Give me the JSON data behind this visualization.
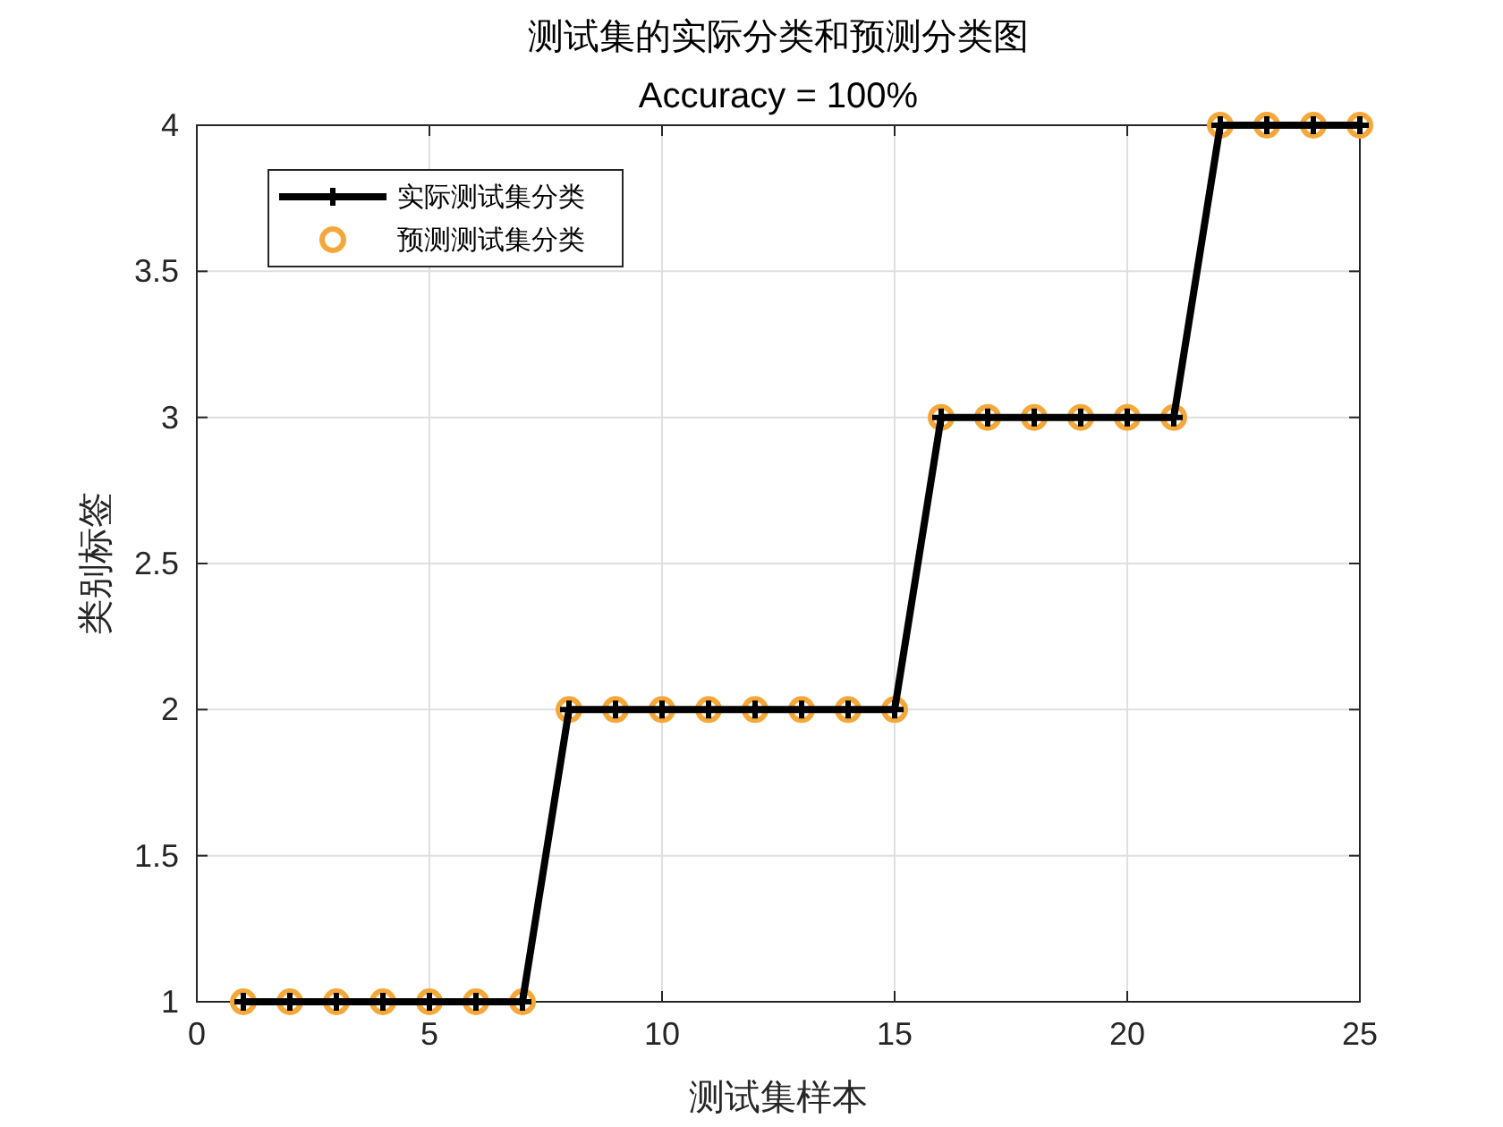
{
  "chart_data": {
    "type": "line",
    "title": "测试集的实际分类和预测分类图",
    "subtitle": "Accuracy = 100%",
    "xlabel": "测试集样本",
    "ylabel": "类别标签",
    "xlim": [
      0,
      25
    ],
    "xticks": [
      0,
      5,
      10,
      15,
      20,
      25
    ],
    "ylim": [
      1,
      4
    ],
    "yticks": [
      1,
      1.5,
      2,
      2.5,
      3,
      3.5,
      4
    ],
    "grid": true,
    "legend": "top left",
    "series": [
      {
        "name": "实际测试集分类",
        "marker": "cross",
        "color": "#000000",
        "x": [
          1,
          2,
          3,
          4,
          5,
          6,
          7,
          8,
          9,
          10,
          11,
          12,
          13,
          14,
          15,
          16,
          17,
          18,
          19,
          20,
          21,
          22,
          23,
          24,
          25
        ],
        "values": [
          1,
          1,
          1,
          1,
          1,
          1,
          1,
          2,
          2,
          2,
          2,
          2,
          2,
          2,
          2,
          3,
          3,
          3,
          3,
          3,
          3,
          4,
          4,
          4,
          4
        ]
      },
      {
        "name": "预测测试集分类",
        "type": "scatter",
        "marker": "circle",
        "color": "#f5a83a",
        "x": [
          1,
          2,
          3,
          4,
          5,
          6,
          7,
          8,
          9,
          10,
          11,
          12,
          13,
          14,
          15,
          16,
          17,
          18,
          19,
          20,
          21,
          22,
          23,
          24,
          25
        ],
        "values": [
          1,
          1,
          1,
          1,
          1,
          1,
          1,
          2,
          2,
          2,
          2,
          2,
          2,
          2,
          2,
          3,
          3,
          3,
          3,
          3,
          3,
          4,
          4,
          4,
          4
        ]
      }
    ]
  }
}
